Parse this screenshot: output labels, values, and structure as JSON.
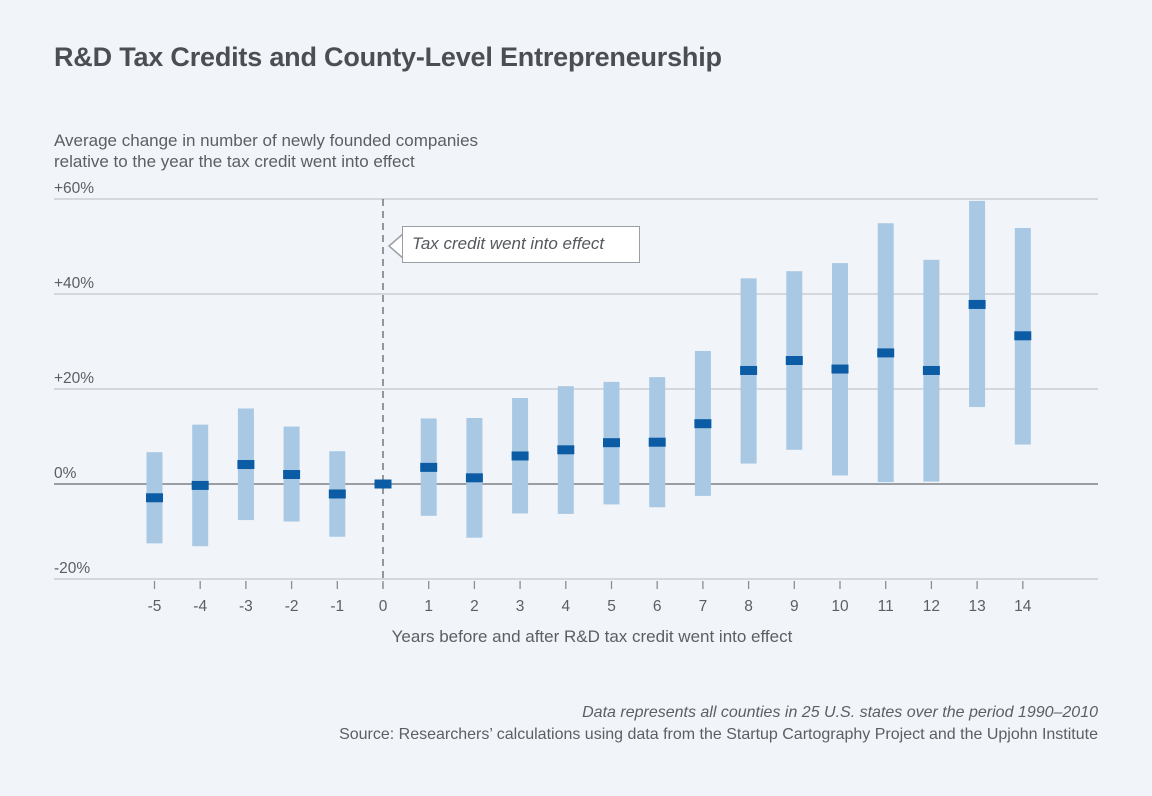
{
  "chart_data": {
    "type": "errorbar",
    "title": "R&D Tax Credits and County-Level Entrepreneurship",
    "subtitle": [
      "Average change in number of newly founded companies",
      "relative to the year the tax credit went into effect"
    ],
    "xlabel": "Years before and after R&D tax credit went into effect",
    "ylabel": "Average change in number of newly founded companies relative to the year the tax credit went into effect",
    "ylim": [
      -20,
      60
    ],
    "yticks": [
      -20,
      0,
      20,
      40,
      60
    ],
    "ytick_labels": [
      "-20%",
      "0%",
      "+20%",
      "+40%",
      "+60%"
    ],
    "grid": true,
    "x": [
      -5,
      -4,
      -3,
      -2,
      -1,
      0,
      1,
      2,
      3,
      4,
      5,
      6,
      7,
      8,
      9,
      10,
      11,
      12,
      13,
      14
    ],
    "xtick_labels": [
      "-5",
      "-4",
      "-3",
      "-2",
      "-1",
      "0",
      "1",
      "2",
      "3",
      "4",
      "5",
      "6",
      "7",
      "8",
      "9",
      "10",
      "11",
      "12",
      "13",
      "14"
    ],
    "series": [
      {
        "name": "Point estimate",
        "values": [
          -2.9,
          -0.3,
          4.1,
          2.0,
          -2.1,
          0,
          3.5,
          1.3,
          5.9,
          7.2,
          8.7,
          8.8,
          12.7,
          23.9,
          26.0,
          24.2,
          27.6,
          23.9,
          37.8,
          31.2
        ]
      },
      {
        "name": "Confidence interval upper",
        "values": [
          6.7,
          12.5,
          15.9,
          12.1,
          6.9,
          null,
          13.8,
          13.9,
          18.1,
          20.6,
          21.5,
          22.5,
          28.0,
          43.3,
          44.8,
          46.5,
          54.9,
          47.2,
          59.6,
          53.9
        ]
      },
      {
        "name": "Confidence interval lower",
        "values": [
          -12.5,
          -13.1,
          -7.6,
          -7.9,
          -11.1,
          null,
          -6.7,
          -11.3,
          -6.2,
          -6.3,
          -4.3,
          -4.9,
          -2.5,
          4.3,
          7.2,
          1.8,
          0.4,
          0.5,
          16.2,
          8.3
        ]
      }
    ],
    "annotations": [
      {
        "x": 0,
        "text": "Tax credit went into effect",
        "style": "dashed vertical line with callout"
      }
    ],
    "colors": {
      "interval": "#a9c8e3",
      "estimate": "#0b5ca4",
      "background": "#f1f5fa",
      "gridline": "#c3c7cc",
      "zero_line": "#7d8186"
    },
    "notes": [
      "Data represents all counties in 25 U.S. states over the period 1990–2010",
      "Source: Researchers’ calculations using data from the Startup Cartography Project and the Upjohn Institute"
    ]
  }
}
